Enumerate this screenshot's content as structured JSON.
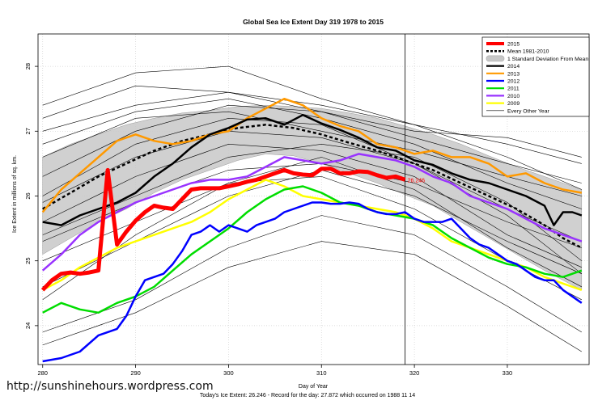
{
  "chart_data": {
    "type": "line",
    "title": "Global Sea Ice Extent Day 319 1978 to 2015",
    "xlabel": "Day of Year",
    "ylabel": "Ice Extent in millions of sq. km.",
    "xlim": [
      279.5,
      338.8
    ],
    "ylim": [
      23.4,
      28.5
    ],
    "x_ticks": [
      280,
      290,
      300,
      310,
      320,
      330
    ],
    "y_ticks": [
      24,
      25,
      26,
      27,
      28
    ],
    "grid": true,
    "legend_position": "top-right",
    "vertical_marker_x": 319,
    "end_label": "26.246",
    "colors": {
      "y2015": "#ff0000",
      "mean": "#000000",
      "sd_band": "#c8c8c8",
      "y2014": "#000000",
      "y2013": "#ff9900",
      "y2012": "#0000ff",
      "y2011": "#00dd00",
      "y2010": "#9933ff",
      "y2009": "#ffff00",
      "other": "#000000"
    },
    "legend": [
      {
        "key": "y2015",
        "label": "2015",
        "style": "thick"
      },
      {
        "key": "mean",
        "label": "Mean 1981-2010",
        "style": "dashed"
      },
      {
        "key": "sd_band",
        "label": "1 Standard Deviation From Mean",
        "style": "band"
      },
      {
        "key": "y2014",
        "label": "2014",
        "style": "line"
      },
      {
        "key": "y2013",
        "label": "2013",
        "style": "line"
      },
      {
        "key": "y2012",
        "label": "2012",
        "style": "line"
      },
      {
        "key": "y2011",
        "label": "2011",
        "style": "line"
      },
      {
        "key": "y2010",
        "label": "2010",
        "style": "line"
      },
      {
        "key": "y2009",
        "label": "2009",
        "style": "line"
      },
      {
        "key": "other",
        "label": "Every Other Year",
        "style": "thin"
      }
    ],
    "mean": {
      "x": [
        280,
        283,
        286,
        289,
        292,
        295,
        298,
        301,
        304,
        307,
        310,
        313,
        316,
        319,
        322,
        325,
        328,
        331,
        334,
        336,
        338
      ],
      "y": [
        25.8,
        26.05,
        26.3,
        26.5,
        26.7,
        26.85,
        26.95,
        27.05,
        27.1,
        27.05,
        26.95,
        26.82,
        26.7,
        26.55,
        26.4,
        26.2,
        26.0,
        25.8,
        25.55,
        25.35,
        25.2
      ]
    },
    "sd_band": {
      "x": [
        280,
        283,
        286,
        289,
        292,
        295,
        298,
        301,
        304,
        307,
        310,
        313,
        316,
        319,
        322,
        325,
        328,
        331,
        334,
        336,
        338
      ],
      "upper": [
        26.6,
        26.8,
        26.95,
        27.1,
        27.2,
        27.28,
        27.32,
        27.38,
        27.4,
        27.38,
        27.35,
        27.28,
        27.2,
        27.08,
        26.95,
        26.8,
        26.62,
        26.45,
        26.3,
        26.2,
        26.1
      ],
      "lower": [
        25.1,
        25.35,
        25.6,
        25.8,
        26.05,
        26.25,
        26.4,
        26.55,
        26.65,
        26.62,
        26.5,
        26.35,
        26.2,
        26.02,
        25.85,
        25.6,
        25.35,
        25.1,
        24.85,
        24.7,
        24.55
      ]
    },
    "series": [
      {
        "key": "y2015",
        "name": "2015",
        "width": 5,
        "x": [
          280,
          281,
          282,
          283,
          284,
          285,
          286,
          287,
          288,
          289,
          290,
          291,
          292,
          293,
          294,
          295,
          296,
          297,
          298,
          299,
          300,
          301,
          302,
          303,
          304,
          305,
          306,
          307,
          308,
          309,
          310,
          311,
          312,
          313,
          314,
          315,
          316,
          317,
          318,
          319
        ],
        "y": [
          24.55,
          24.7,
          24.8,
          24.82,
          24.8,
          24.82,
          24.85,
          26.4,
          25.25,
          25.45,
          25.62,
          25.75,
          25.85,
          25.82,
          25.8,
          25.95,
          26.1,
          26.12,
          26.12,
          26.12,
          26.15,
          26.18,
          26.22,
          26.25,
          26.3,
          26.35,
          26.4,
          26.35,
          26.33,
          26.32,
          26.42,
          26.42,
          26.35,
          26.35,
          26.38,
          26.37,
          26.32,
          26.28,
          26.3,
          26.25
        ]
      },
      {
        "key": "y2014",
        "name": "2014",
        "width": 2.5,
        "x": [
          280,
          282,
          284,
          286,
          288,
          290,
          292,
          294,
          296,
          298,
          300,
          302,
          304,
          306,
          308,
          310,
          312,
          314,
          316,
          318,
          320,
          322,
          324,
          326,
          328,
          330,
          332,
          334,
          335,
          336,
          337,
          338
        ],
        "y": [
          25.6,
          25.55,
          25.7,
          25.8,
          25.9,
          26.05,
          26.3,
          26.5,
          26.75,
          26.95,
          27.05,
          27.18,
          27.2,
          27.1,
          27.25,
          27.12,
          27.02,
          26.9,
          26.75,
          26.7,
          26.55,
          26.48,
          26.35,
          26.25,
          26.2,
          26.1,
          26.0,
          25.85,
          25.55,
          25.75,
          25.75,
          25.7
        ]
      },
      {
        "key": "y2013",
        "name": "2013",
        "width": 2.5,
        "x": [
          280,
          282,
          284,
          286,
          288,
          290,
          292,
          294,
          296,
          298,
          300,
          302,
          304,
          306,
          308,
          310,
          312,
          314,
          316,
          318,
          320,
          322,
          324,
          326,
          328,
          330,
          332,
          334,
          336,
          338
        ],
        "y": [
          25.75,
          26.1,
          26.35,
          26.6,
          26.85,
          26.95,
          26.85,
          26.8,
          26.85,
          26.95,
          27.0,
          27.2,
          27.35,
          27.5,
          27.4,
          27.2,
          27.08,
          27.0,
          26.8,
          26.75,
          26.65,
          26.7,
          26.6,
          26.6,
          26.5,
          26.3,
          26.35,
          26.2,
          26.1,
          26.05
        ]
      },
      {
        "key": "y2012",
        "name": "2012",
        "width": 2.5,
        "x": [
          280,
          282,
          284,
          286,
          287,
          288,
          289,
          290,
          291,
          292,
          293,
          294,
          295,
          296,
          297,
          298,
          299,
          300,
          301,
          302,
          303,
          304,
          305,
          306,
          307,
          308,
          309,
          310,
          311,
          312,
          313,
          314,
          315,
          316,
          317,
          318,
          319,
          320,
          321,
          322,
          323,
          324,
          325,
          326,
          327,
          328,
          329,
          330,
          331,
          332,
          333,
          334,
          335,
          336,
          337,
          338
        ],
        "y": [
          23.45,
          23.5,
          23.6,
          23.85,
          23.9,
          23.95,
          24.15,
          24.45,
          24.7,
          24.75,
          24.8,
          24.95,
          25.15,
          25.4,
          25.45,
          25.55,
          25.45,
          25.55,
          25.5,
          25.45,
          25.55,
          25.6,
          25.65,
          25.75,
          25.8,
          25.85,
          25.9,
          25.9,
          25.88,
          25.88,
          25.9,
          25.88,
          25.8,
          25.75,
          25.72,
          25.72,
          25.75,
          25.65,
          25.6,
          25.6,
          25.6,
          25.65,
          25.5,
          25.35,
          25.25,
          25.2,
          25.1,
          25.0,
          24.95,
          24.85,
          24.75,
          24.7,
          24.7,
          24.55,
          24.45,
          24.35
        ]
      },
      {
        "key": "y2011",
        "name": "2011",
        "width": 2.5,
        "x": [
          280,
          282,
          284,
          286,
          288,
          290,
          292,
          294,
          296,
          298,
          300,
          302,
          304,
          306,
          308,
          310,
          312,
          314,
          316,
          318,
          320,
          322,
          324,
          326,
          328,
          330,
          332,
          334,
          336,
          338
        ],
        "y": [
          24.2,
          24.35,
          24.25,
          24.2,
          24.35,
          24.45,
          24.6,
          24.85,
          25.1,
          25.3,
          25.5,
          25.75,
          25.95,
          26.1,
          26.15,
          26.05,
          25.9,
          25.85,
          25.75,
          25.7,
          25.65,
          25.55,
          25.35,
          25.2,
          25.05,
          24.95,
          24.9,
          24.8,
          24.75,
          24.85
        ]
      },
      {
        "key": "y2010",
        "name": "2010",
        "width": 2.5,
        "x": [
          280,
          282,
          284,
          286,
          288,
          290,
          292,
          294,
          296,
          298,
          300,
          302,
          304,
          306,
          308,
          310,
          312,
          314,
          316,
          318,
          320,
          322,
          324,
          326,
          328,
          330,
          332,
          334,
          336,
          338
        ],
        "y": [
          24.85,
          25.1,
          25.4,
          25.6,
          25.75,
          25.9,
          26.0,
          26.1,
          26.2,
          26.25,
          26.25,
          26.3,
          26.45,
          26.6,
          26.55,
          26.5,
          26.55,
          26.65,
          26.6,
          26.55,
          26.45,
          26.3,
          26.2,
          26.0,
          25.9,
          25.8,
          25.65,
          25.5,
          25.4,
          25.3
        ]
      },
      {
        "key": "y2009",
        "name": "2009",
        "width": 2.5,
        "x": [
          280,
          282,
          284,
          286,
          288,
          290,
          292,
          294,
          296,
          298,
          300,
          302,
          304,
          306,
          308,
          310,
          312,
          314,
          316,
          318,
          320,
          322,
          324,
          326,
          328,
          330,
          332,
          334,
          336,
          338
        ],
        "y": [
          24.55,
          24.7,
          24.9,
          25.05,
          25.2,
          25.3,
          25.4,
          25.5,
          25.6,
          25.75,
          25.95,
          26.1,
          26.25,
          26.15,
          26.0,
          25.95,
          25.9,
          25.85,
          25.8,
          25.75,
          25.65,
          25.5,
          25.3,
          25.2,
          25.1,
          25.0,
          24.9,
          24.75,
          24.65,
          24.55
        ]
      }
    ],
    "other_years": [
      {
        "x": [
          280,
          290,
          300,
          310,
          320,
          330,
          338
        ],
        "y": [
          25.3,
          25.9,
          26.4,
          26.5,
          26.2,
          25.6,
          25.2
        ]
      },
      {
        "x": [
          280,
          290,
          300,
          310,
          320,
          330,
          338
        ],
        "y": [
          25.9,
          26.6,
          27.0,
          26.9,
          26.5,
          25.8,
          25.3
        ]
      },
      {
        "x": [
          280,
          290,
          300,
          310,
          320,
          330,
          338
        ],
        "y": [
          26.3,
          27.0,
          27.4,
          27.3,
          26.9,
          26.5,
          26.2
        ]
      },
      {
        "x": [
          280,
          290,
          300,
          310,
          320,
          330,
          338
        ],
        "y": [
          27.0,
          27.4,
          27.6,
          27.4,
          27.1,
          26.8,
          26.5
        ]
      },
      {
        "x": [
          280,
          290,
          300,
          310,
          320,
          330,
          338
        ],
        "y": [
          25.0,
          25.6,
          26.2,
          26.6,
          26.1,
          25.2,
          24.6
        ]
      },
      {
        "x": [
          280,
          290,
          300,
          310,
          320,
          330,
          338
        ],
        "y": [
          24.4,
          25.4,
          26.2,
          26.3,
          25.8,
          25.0,
          24.4
        ]
      },
      {
        "x": [
          280,
          290,
          300,
          310,
          320,
          330,
          338
        ],
        "y": [
          25.6,
          26.3,
          26.8,
          26.7,
          26.3,
          25.4,
          24.9
        ]
      },
      {
        "x": [
          280,
          290,
          300,
          310,
          320,
          330,
          338
        ],
        "y": [
          26.6,
          27.2,
          27.3,
          27.0,
          26.7,
          26.3,
          26.0
        ]
      },
      {
        "x": [
          280,
          290,
          300,
          310,
          320,
          330,
          338
        ],
        "y": [
          23.9,
          24.4,
          25.2,
          25.7,
          25.4,
          24.6,
          23.9
        ]
      },
      {
        "x": [
          280,
          290,
          300,
          310,
          320,
          330,
          338
        ],
        "y": [
          23.7,
          24.2,
          24.9,
          25.3,
          25.1,
          24.3,
          23.6
        ]
      },
      {
        "x": [
          280,
          290,
          300,
          310,
          320,
          330,
          338
        ],
        "y": [
          27.2,
          27.7,
          27.6,
          27.3,
          27.0,
          26.9,
          26.6
        ]
      },
      {
        "x": [
          280,
          290,
          300,
          310,
          320,
          330,
          338
        ],
        "y": [
          26.8,
          27.3,
          27.5,
          27.2,
          26.8,
          26.2,
          25.8
        ]
      },
      {
        "x": [
          280,
          290,
          300,
          310,
          320,
          330,
          338
        ],
        "y": [
          25.4,
          26.0,
          26.6,
          26.8,
          26.6,
          25.9,
          25.0
        ]
      },
      {
        "x": [
          280,
          290,
          300,
          310,
          320,
          330,
          338
        ],
        "y": [
          24.6,
          25.3,
          26.0,
          26.4,
          26.0,
          25.3,
          24.8
        ]
      },
      {
        "x": [
          280,
          290,
          300,
          310,
          320,
          330,
          338
        ],
        "y": [
          26.0,
          26.8,
          27.2,
          27.1,
          26.5,
          25.7,
          24.8
        ]
      },
      {
        "x": [
          280,
          290,
          300,
          310,
          320,
          330,
          338
        ],
        "y": [
          27.4,
          27.9,
          28.0,
          27.5,
          27.1,
          26.6,
          26.1
        ]
      }
    ]
  },
  "watermark": "http://sunshinehours.wordpress.com",
  "footnote": "Today's Ice Extent: 26.246  -  Record for the day: 27.872 which occurred on 1988 11 14"
}
